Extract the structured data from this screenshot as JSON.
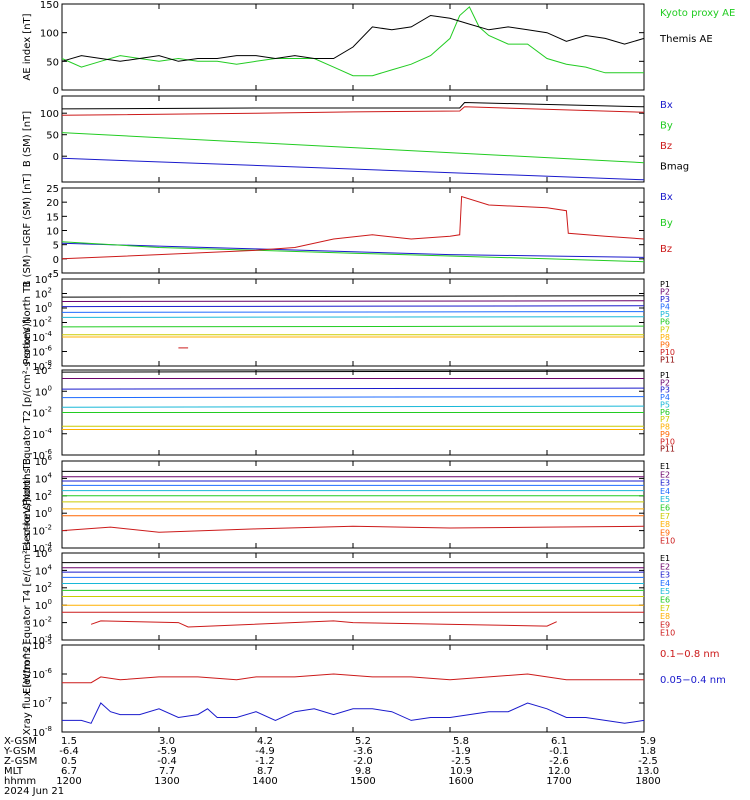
{
  "chart_data": [
    {
      "type": "line",
      "ylabel": "AE index [nT]",
      "ylim": [
        0,
        150
      ],
      "yticks": [
        "0",
        "50",
        "100",
        "150"
      ],
      "legend_placement": "right",
      "series": [
        {
          "name": "Kyoto proxy AE",
          "color": "#22cc22",
          "x": [
            1200,
            1220,
            1240,
            1260,
            1280,
            1300,
            1320,
            1340,
            1360,
            1380,
            1400,
            1420,
            1440,
            1460,
            1480,
            1500,
            1520,
            1540,
            1560,
            1580,
            1600,
            1610,
            1620,
            1630,
            1640,
            1660,
            1680,
            1700,
            1720,
            1740,
            1760,
            1780,
            1800
          ],
          "y": [
            55,
            40,
            50,
            60,
            55,
            50,
            55,
            50,
            50,
            45,
            50,
            55,
            55,
            55,
            40,
            25,
            25,
            35,
            45,
            60,
            90,
            130,
            145,
            110,
            95,
            80,
            80,
            55,
            45,
            40,
            30,
            30,
            30
          ]
        },
        {
          "name": "Themis AE",
          "color": "#000000",
          "x": [
            1200,
            1220,
            1240,
            1260,
            1280,
            1300,
            1320,
            1340,
            1360,
            1380,
            1400,
            1420,
            1440,
            1460,
            1480,
            1500,
            1520,
            1540,
            1560,
            1580,
            1600,
            1620,
            1640,
            1660,
            1680,
            1700,
            1720,
            1740,
            1760,
            1780,
            1800
          ],
          "y": [
            50,
            60,
            55,
            50,
            55,
            60,
            50,
            55,
            55,
            60,
            60,
            55,
            60,
            55,
            55,
            75,
            110,
            105,
            110,
            130,
            125,
            115,
            105,
            110,
            105,
            100,
            85,
            95,
            90,
            80,
            90
          ]
        }
      ]
    },
    {
      "type": "line",
      "ylabel": "B (SM) [nT]",
      "ylim": [
        -60,
        140
      ],
      "yticks": [
        "0",
        "50",
        "100"
      ],
      "series": [
        {
          "name": "Bx",
          "color": "#1a1acc",
          "x": [
            1200,
            1800
          ],
          "y": [
            -5,
            -55
          ]
        },
        {
          "name": "By",
          "color": "#22cc22",
          "x": [
            1200,
            1800
          ],
          "y": [
            55,
            -15
          ]
        },
        {
          "name": "Bz",
          "color": "#cc1a1a",
          "x": [
            1200,
            1400,
            1500,
            1610,
            1615,
            1800
          ],
          "y": [
            95,
            100,
            103,
            105,
            115,
            102
          ]
        },
        {
          "name": "Bmag",
          "color": "#000000",
          "x": [
            1200,
            1400,
            1500,
            1610,
            1615,
            1800
          ],
          "y": [
            110,
            112,
            112,
            112,
            125,
            115
          ]
        }
      ]
    },
    {
      "type": "line",
      "ylabel": "B (SM)−IGRF (SM) [nT]",
      "ylim": [
        -5,
        25
      ],
      "yticks": [
        "-5",
        "0",
        "5",
        "10",
        "15",
        "20",
        "25"
      ],
      "series": [
        {
          "name": "Bx",
          "color": "#1a1acc",
          "x": [
            1200,
            1300,
            1400,
            1500,
            1600,
            1700,
            1800
          ],
          "y": [
            5.5,
            4.5,
            3.5,
            2.5,
            1.5,
            1,
            0.5
          ]
        },
        {
          "name": "By",
          "color": "#22cc22",
          "x": [
            1200,
            1300,
            1400,
            1500,
            1600,
            1700,
            1800
          ],
          "y": [
            6,
            4,
            3,
            2,
            1,
            0,
            -1
          ]
        },
        {
          "name": "Bz",
          "color": "#cc1a1a",
          "x": [
            1200,
            1300,
            1400,
            1440,
            1480,
            1520,
            1560,
            1600,
            1610,
            1612,
            1640,
            1700,
            1720,
            1722,
            1760,
            1800
          ],
          "y": [
            0,
            1.5,
            3,
            4,
            7,
            8.5,
            7,
            8,
            8.5,
            22,
            19,
            18,
            17,
            9,
            8,
            7
          ]
        }
      ]
    },
    {
      "type": "line",
      "ylabel": "Protons North T1",
      "log": true,
      "ylim": [
        -8,
        4
      ],
      "yticks": [
        "10^4",
        "10^2",
        "10^0",
        "10^-2",
        "10^-4",
        "10^-6",
        "10^-8"
      ],
      "series": [
        {
          "name": "P1",
          "color": "#000000",
          "x": [
            1200,
            1800
          ],
          "y": [
            1.5,
            1.7
          ]
        },
        {
          "name": "P2",
          "color": "#6a006a",
          "x": [
            1200,
            1800
          ],
          "y": [
            0.9,
            1.0
          ]
        },
        {
          "name": "P3",
          "color": "#1a1acc",
          "x": [
            1200,
            1800
          ],
          "y": [
            0.2,
            0.3
          ]
        },
        {
          "name": "P4",
          "color": "#1e6bff",
          "x": [
            1200,
            1800
          ],
          "y": [
            -0.6,
            -0.5
          ]
        },
        {
          "name": "P5",
          "color": "#18b8d8",
          "x": [
            1200,
            1800
          ],
          "y": [
            -1.3,
            -1.2
          ]
        },
        {
          "name": "P6",
          "color": "#22cc22",
          "x": [
            1200,
            1800
          ],
          "y": [
            -2.6,
            -2.5
          ]
        },
        {
          "name": "P7",
          "color": "#cccc00",
          "x": [
            1200,
            1800
          ],
          "y": [
            -3.7,
            -3.7
          ]
        },
        {
          "name": "P8",
          "color": "#ffb000",
          "x": [
            1200,
            1800
          ],
          "y": [
            -4.0,
            -4.0
          ]
        },
        {
          "name": "P9",
          "color": "#ff6600",
          "x": [],
          "y": []
        },
        {
          "name": "P10",
          "color": "#cc1a1a",
          "x": [
            1320,
            1330
          ],
          "y": [
            -5.5,
            -5.5
          ]
        },
        {
          "name": "P11",
          "color": "#880000",
          "x": [],
          "y": []
        }
      ]
    },
    {
      "type": "line",
      "ylabel": "Protons Equator T2 [p/(cm²-s-sr-keV)]",
      "log": true,
      "ylim": [
        -6,
        2
      ],
      "yticks": [
        "10^2",
        "10^0",
        "10^-2",
        "10^-4",
        "10^-6"
      ],
      "series": [
        {
          "name": "P1",
          "color": "#000000",
          "x": [
            1200,
            1800
          ],
          "y": [
            1.8,
            1.9
          ]
        },
        {
          "name": "P2",
          "color": "#6a006a",
          "x": [
            1200,
            1800
          ],
          "y": [
            1.2,
            1.2
          ]
        },
        {
          "name": "P3",
          "color": "#1a1acc",
          "x": [
            1200,
            1800
          ],
          "y": [
            0.2,
            0.3
          ]
        },
        {
          "name": "P4",
          "color": "#1e6bff",
          "x": [
            1200,
            1800
          ],
          "y": [
            -0.6,
            -0.5
          ]
        },
        {
          "name": "P5",
          "color": "#18b8d8",
          "x": [
            1200,
            1800
          ],
          "y": [
            -1.5,
            -1.4
          ]
        },
        {
          "name": "P6",
          "color": "#22cc22",
          "x": [
            1200,
            1800
          ],
          "y": [
            -2.0,
            -2.0
          ]
        },
        {
          "name": "P7",
          "color": "#cccc00",
          "x": [
            1200,
            1800
          ],
          "y": [
            -3.3,
            -3.3
          ]
        },
        {
          "name": "P8",
          "color": "#ffb000",
          "x": [
            1200,
            1800
          ],
          "y": [
            -3.6,
            -3.6
          ]
        },
        {
          "name": "P9",
          "color": "#ff6600",
          "x": [],
          "y": []
        },
        {
          "name": "P10",
          "color": "#cc1a1a",
          "x": [],
          "y": []
        },
        {
          "name": "P11",
          "color": "#880000",
          "x": [],
          "y": []
        }
      ]
    },
    {
      "type": "line",
      "ylabel": "Electrons North T3",
      "log": true,
      "ylim": [
        -4,
        6
      ],
      "yticks": [
        "10^6",
        "10^4",
        "10^2",
        "10^0",
        "10^-2",
        "10^-4"
      ],
      "series": [
        {
          "name": "E1",
          "color": "#000000",
          "x": [
            1200,
            1800
          ],
          "y": [
            4.8,
            4.8
          ]
        },
        {
          "name": "E2",
          "color": "#6a006a",
          "x": [
            1200,
            1800
          ],
          "y": [
            4.2,
            4.2
          ]
        },
        {
          "name": "E3",
          "color": "#1a1acc",
          "x": [
            1200,
            1800
          ],
          "y": [
            3.7,
            3.7
          ]
        },
        {
          "name": "E4",
          "color": "#1e6bff",
          "x": [
            1200,
            1800
          ],
          "y": [
            3.2,
            3.2
          ]
        },
        {
          "name": "E5",
          "color": "#18b8d8",
          "x": [
            1200,
            1800
          ],
          "y": [
            2.6,
            2.6
          ]
        },
        {
          "name": "E6",
          "color": "#22cc22",
          "x": [
            1200,
            1800
          ],
          "y": [
            2.0,
            2.0
          ]
        },
        {
          "name": "E7",
          "color": "#cccc00",
          "x": [
            1200,
            1800
          ],
          "y": [
            1.3,
            1.3
          ]
        },
        {
          "name": "E8",
          "color": "#ffb000",
          "x": [
            1200,
            1800
          ],
          "y": [
            0.5,
            0.5
          ]
        },
        {
          "name": "E9",
          "color": "#ff6600",
          "x": [
            1200,
            1800
          ],
          "y": [
            -0.3,
            -0.3
          ]
        },
        {
          "name": "E10",
          "color": "#cc1a1a",
          "x": [
            1200,
            1250,
            1300,
            1400,
            1500,
            1600,
            1700,
            1800
          ],
          "y": [
            -2.0,
            -1.6,
            -2.2,
            -1.8,
            -1.5,
            -1.7,
            -1.6,
            -1.5
          ]
        }
      ]
    },
    {
      "type": "line",
      "ylabel": "Electrons Equator T4 [e/(cm²-s-sr-keV)]",
      "log": true,
      "ylim": [
        -4,
        6
      ],
      "yticks": [
        "10^6",
        "10^4",
        "10^2",
        "10^0",
        "10^-2",
        "10^-4"
      ],
      "series": [
        {
          "name": "E1",
          "color": "#000000",
          "x": [
            1200,
            1800
          ],
          "y": [
            4.9,
            4.9
          ]
        },
        {
          "name": "E2",
          "color": "#6a006a",
          "x": [
            1200,
            1800
          ],
          "y": [
            4.3,
            4.3
          ]
        },
        {
          "name": "E3",
          "color": "#1a1acc",
          "x": [
            1200,
            1800
          ],
          "y": [
            3.8,
            3.8
          ]
        },
        {
          "name": "E4",
          "color": "#1e6bff",
          "x": [
            1200,
            1800
          ],
          "y": [
            3.2,
            3.2
          ]
        },
        {
          "name": "E5",
          "color": "#18b8d8",
          "x": [
            1200,
            1800
          ],
          "y": [
            2.5,
            2.5
          ]
        },
        {
          "name": "E6",
          "color": "#22cc22",
          "x": [
            1200,
            1800
          ],
          "y": [
            1.7,
            1.7
          ]
        },
        {
          "name": "E7",
          "color": "#cccc00",
          "x": [
            1200,
            1800
          ],
          "y": [
            1.0,
            1.0
          ]
        },
        {
          "name": "E8",
          "color": "#ffb000",
          "x": [
            1200,
            1800
          ],
          "y": [
            0.0,
            0.0
          ]
        },
        {
          "name": "E9",
          "color": "#cc1a1a",
          "x": [
            1200,
            1800
          ],
          "y": [
            -0.8,
            -0.8
          ]
        },
        {
          "name": "E10",
          "color": "#cc1a1a",
          "x": [
            1230,
            1240,
            1320,
            1330,
            1480,
            1500,
            1700,
            1710
          ],
          "y": [
            -2.2,
            -1.8,
            -2.0,
            -2.5,
            -1.8,
            -2.0,
            -2.4,
            -1.9
          ]
        }
      ]
    },
    {
      "type": "line",
      "ylabel": "Xray flux [W/m^2]",
      "log": true,
      "ylim": [
        -8,
        -5
      ],
      "yticks": [
        "10^-5",
        "10^-6",
        "10^-7",
        "10^-8"
      ],
      "series": [
        {
          "name": "0.1−0.8 nm",
          "color": "#cc1a1a",
          "x": [
            1200,
            1230,
            1240,
            1260,
            1300,
            1340,
            1380,
            1400,
            1440,
            1480,
            1520,
            1560,
            1600,
            1640,
            1680,
            1700,
            1720,
            1760,
            1800
          ],
          "y": [
            -6.3,
            -6.3,
            -6.1,
            -6.2,
            -6.1,
            -6.1,
            -6.2,
            -6.1,
            -6.1,
            -6.0,
            -6.1,
            -6.1,
            -6.2,
            -6.1,
            -6.0,
            -6.1,
            -6.2,
            -6.2,
            -6.2
          ]
        },
        {
          "name": "0.05−0.4 nm",
          "color": "#1a1acc",
          "x": [
            1200,
            1220,
            1230,
            1240,
            1250,
            1260,
            1280,
            1300,
            1320,
            1340,
            1350,
            1360,
            1380,
            1400,
            1420,
            1440,
            1460,
            1480,
            1500,
            1520,
            1540,
            1560,
            1580,
            1600,
            1620,
            1640,
            1660,
            1680,
            1700,
            1720,
            1740,
            1760,
            1780,
            1800
          ],
          "y": [
            -7.6,
            -7.6,
            -7.7,
            -7.0,
            -7.3,
            -7.4,
            -7.4,
            -7.2,
            -7.5,
            -7.4,
            -7.2,
            -7.5,
            -7.5,
            -7.3,
            -7.6,
            -7.3,
            -7.2,
            -7.4,
            -7.2,
            -7.2,
            -7.3,
            -7.6,
            -7.5,
            -7.5,
            -7.4,
            -7.3,
            -7.3,
            -7.0,
            -7.2,
            -7.5,
            -7.5,
            -7.6,
            -7.7,
            -7.6
          ]
        }
      ]
    }
  ],
  "footer": {
    "rows": [
      {
        "label": "X-GSM",
        "values": [
          "1.5",
          "3.0",
          "4.2",
          "5.2",
          "5.8",
          "6.1",
          "5.9"
        ]
      },
      {
        "label": "Y-GSM",
        "values": [
          "-6.4",
          "-5.9",
          "-4.9",
          "-3.6",
          "-1.9",
          "-0.1",
          "1.8"
        ]
      },
      {
        "label": "Z-GSM",
        "values": [
          "0.5",
          "-0.4",
          "-1.2",
          "-2.0",
          "-2.5",
          "-2.6",
          "-2.5"
        ]
      },
      {
        "label": "MLT",
        "values": [
          "6.7",
          "7.7",
          "8.7",
          "9.8",
          "10.9",
          "12.0",
          "13.0"
        ]
      },
      {
        "label": "hhmm",
        "values": [
          "1200",
          "1300",
          "1400",
          "1500",
          "1600",
          "1700",
          "1800"
        ]
      }
    ],
    "date": "2024 Jun 21"
  }
}
